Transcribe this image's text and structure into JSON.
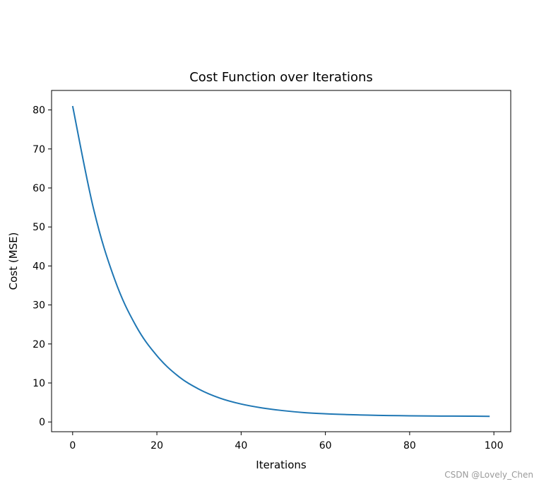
{
  "chart_data": {
    "type": "line",
    "title": "Cost Function over Iterations",
    "xlabel": "Iterations",
    "ylabel": "Cost (MSE)",
    "xlim": [
      -5,
      104
    ],
    "ylim": [
      -2.5,
      85
    ],
    "xticks": [
      0,
      20,
      40,
      60,
      80,
      100
    ],
    "yticks": [
      0,
      10,
      20,
      30,
      40,
      50,
      60,
      70,
      80
    ],
    "grid": false,
    "series": [
      {
        "color": "#1f77b4",
        "x": [
          0,
          5,
          10,
          15,
          20,
          25,
          30,
          35,
          40,
          45,
          50,
          55,
          60,
          65,
          70,
          75,
          80,
          85,
          90,
          95,
          99
        ],
        "y": [
          81.0,
          54.5,
          36.5,
          24.7,
          17.0,
          11.8,
          8.4,
          6.1,
          4.6,
          3.6,
          2.9,
          2.4,
          2.1,
          1.9,
          1.75,
          1.65,
          1.58,
          1.53,
          1.5,
          1.48,
          1.45
        ]
      }
    ]
  },
  "watermark": "CSDN @Lovely_Chen"
}
